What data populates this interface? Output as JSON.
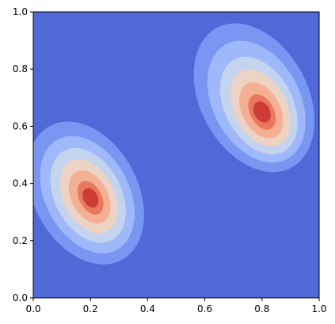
{
  "chart_data": {
    "type": "heatmap",
    "subtype": "filled-contour",
    "title": "",
    "xlabel": "",
    "ylabel": "",
    "xlim": [
      0.0,
      1.0
    ],
    "ylim": [
      0.0,
      1.0
    ],
    "x_ticks": [
      0.0,
      0.2,
      0.4,
      0.6,
      0.8,
      1.0
    ],
    "x_tick_labels": [
      "0.0",
      "0.2",
      "0.4",
      "0.6",
      "0.8",
      "1.0"
    ],
    "y_ticks": [
      0.0,
      0.2,
      0.4,
      0.6,
      0.8,
      1.0
    ],
    "y_tick_labels": [
      "0.0",
      "0.2",
      "0.4",
      "0.6",
      "0.8",
      "1.0"
    ],
    "grid": false,
    "legend": false,
    "colormap": "coolwarm",
    "levels": 8,
    "level_colors": [
      "#5068d8",
      "#7896f2",
      "#9eb8fa",
      "#c4d4ee",
      "#ecd3c4",
      "#f5b094",
      "#e8785e",
      "#cd3c36"
    ],
    "peaks": [
      {
        "x": 0.2,
        "y": 0.35,
        "level": 8
      },
      {
        "x": 0.8,
        "y": 0.65,
        "level": 8
      }
    ],
    "colors": {
      "background": "#5068d8",
      "axis": "#000000"
    }
  }
}
